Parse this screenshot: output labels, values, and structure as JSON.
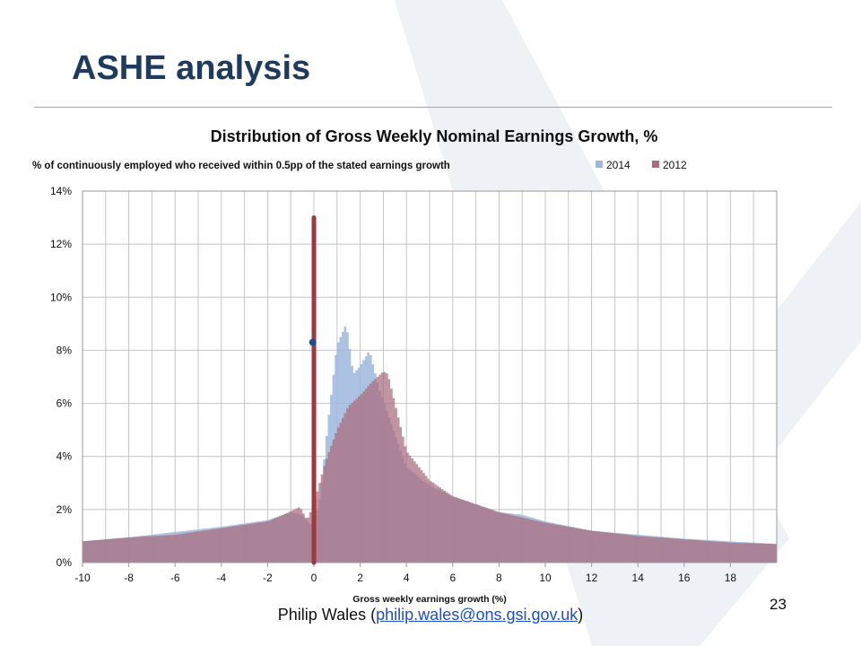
{
  "slide": {
    "title": "ASHE analysis",
    "page_number": "23",
    "footer": {
      "author": "Philip Wales",
      "open": " (",
      "email": "philip.wales@ons.gsi.gov.uk",
      "close": ")"
    }
  },
  "colors": {
    "title": "#1f3a5f",
    "rule": "#a8b844",
    "series_2014": "#9db7de",
    "series_2012": "#a96b7d",
    "zero_line": "#9b3a3f",
    "marker": "#1f4e8c"
  },
  "icons": {
    "watermark": "x-logo-watermark"
  },
  "chart_data": {
    "type": "area",
    "title": "Distribution of Gross Weekly Nominal Earnings Growth, %",
    "subtitle": "% of continuously employed who received within 0.5pp of the stated earnings growth",
    "xlabel": "Gross weekly earnings growth (%)",
    "ylabel": "",
    "xlim": [
      -10,
      20
    ],
    "ylim": [
      0,
      14
    ],
    "x_ticks": [
      -10,
      -8,
      -6,
      -4,
      -2,
      0,
      2,
      4,
      6,
      8,
      10,
      12,
      14,
      16,
      18
    ],
    "y_ticks": [
      0,
      2,
      4,
      6,
      8,
      10,
      12,
      14
    ],
    "y_tick_labels": [
      "0%",
      "2%",
      "4%",
      "6%",
      "8%",
      "10%",
      "12%",
      "14%"
    ],
    "grid": true,
    "legend": "top-right",
    "series": [
      {
        "name": "2014",
        "color": "#9db7de",
        "x": [
          -10,
          -8,
          -6,
          -4,
          -2,
          -1,
          -0.5,
          0,
          0.3,
          0.6,
          1.0,
          1.4,
          1.7,
          2.0,
          2.4,
          2.8,
          3.2,
          4.0,
          5.0,
          6.0,
          8.0,
          9.0,
          10.0,
          12.0,
          14.0,
          16.0,
          18.0,
          20.0
        ],
        "y": [
          0.8,
          0.95,
          1.15,
          1.35,
          1.6,
          1.9,
          1.8,
          1.3,
          2.6,
          5.2,
          8.2,
          9.0,
          7.1,
          7.4,
          8.0,
          6.6,
          5.6,
          3.6,
          2.9,
          2.5,
          1.9,
          1.8,
          1.55,
          1.2,
          1.05,
          0.9,
          0.8,
          0.7
        ]
      },
      {
        "name": "2012",
        "color": "#a96b7d",
        "x": [
          -10,
          -8,
          -6,
          -4,
          -2,
          -1.2,
          -0.6,
          -0.3,
          0,
          0.5,
          1.0,
          1.5,
          2.0,
          2.5,
          3.0,
          3.2,
          4.0,
          5.0,
          6.0,
          8.0,
          10.0,
          12.0,
          14.0,
          16.0,
          18.0,
          20.0
        ],
        "y": [
          0.8,
          0.95,
          1.05,
          1.3,
          1.55,
          1.85,
          2.1,
          1.6,
          2.2,
          3.8,
          5.0,
          5.9,
          6.3,
          6.8,
          7.2,
          7.1,
          4.2,
          3.1,
          2.5,
          1.9,
          1.5,
          1.2,
          1.0,
          0.88,
          0.75,
          0.7
        ]
      }
    ],
    "annotations": [
      {
        "type": "vertical-line",
        "x": 0,
        "y_top": 13.0,
        "color": "#9b3a3f"
      },
      {
        "type": "marker",
        "x": -0.05,
        "y": 8.3,
        "color": "#1f4e8c"
      }
    ]
  }
}
